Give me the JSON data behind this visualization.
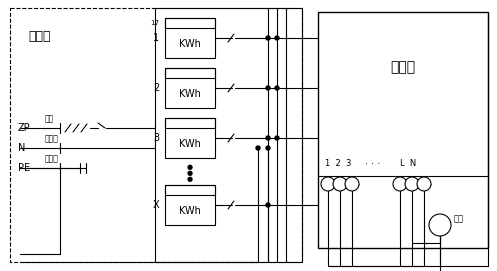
{
  "bg_color": "#ffffff",
  "line_color": "#000000",
  "text_elec_box": "电表笱",
  "text_equalizer": "均分器",
  "text_load": "负载",
  "text_zp": "ZP",
  "text_n": "N",
  "text_pe": "PE",
  "text_power": "电源",
  "text_main_zero": "总零排",
  "text_main_ground": "总地排",
  "text_kwh": "KWh",
  "figsize": [
    4.97,
    2.71
  ],
  "dpi": 100
}
